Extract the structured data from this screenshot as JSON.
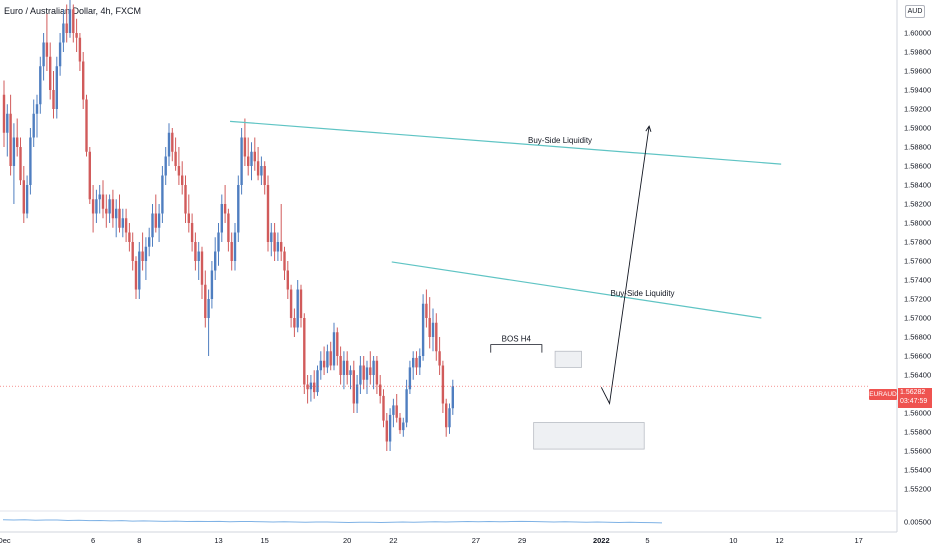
{
  "header": {
    "symbol_title": "Euro / Australian Dollar, 4h, FXCM",
    "currency": "AUD"
  },
  "last_price": {
    "symbol": "EURAUD",
    "price": "1.56282",
    "countdown": "03:47:59"
  },
  "colors": {
    "up_candle": "#4f7ec0",
    "down_candle": "#d15b5b",
    "trendline": "#5fc4c4",
    "last_price_line": "#ef5350",
    "indicator_line": "#7fb2e5",
    "zone_fill": "#eef0f3",
    "zone_border": "#b8bcc4"
  },
  "chart_data": [
    {
      "type": "candlestick",
      "title": "",
      "y_axis": {
        "position": "right",
        "range": [
          1.549,
          1.612
        ],
        "ticks": [
          "1.60000",
          "1.59800",
          "1.59600",
          "1.59400",
          "1.59200",
          "1.59000",
          "1.58800",
          "1.58600",
          "1.58400",
          "1.58200",
          "1.58000",
          "1.57800",
          "1.57600",
          "1.57400",
          "1.57200",
          "1.57000",
          "1.56800",
          "1.56600",
          "1.56400",
          "1.56200",
          "1.56000",
          "1.55800",
          "1.55600",
          "1.55400",
          "1.55200"
        ]
      },
      "x_axis": {
        "ticks": [
          "Dec",
          "6",
          "8",
          "13",
          "15",
          "20",
          "22",
          "27",
          "29",
          "2022",
          "5",
          "10",
          "12",
          "17"
        ]
      },
      "grid": false,
      "current_price": 1.56282,
      "candles": [
        {
          "o": 1.5935,
          "h": 1.595,
          "l": 1.588,
          "c": 1.5895
        },
        {
          "o": 1.5895,
          "h": 1.5925,
          "l": 1.587,
          "c": 1.5915
        },
        {
          "o": 1.5915,
          "h": 1.5935,
          "l": 1.585,
          "c": 1.586
        },
        {
          "o": 1.586,
          "h": 1.5905,
          "l": 1.582,
          "c": 1.589
        },
        {
          "o": 1.589,
          "h": 1.591,
          "l": 1.587,
          "c": 1.588
        },
        {
          "o": 1.588,
          "h": 1.589,
          "l": 1.584,
          "c": 1.5845
        },
        {
          "o": 1.5845,
          "h": 1.586,
          "l": 1.58,
          "c": 1.581
        },
        {
          "o": 1.581,
          "h": 1.585,
          "l": 1.5805,
          "c": 1.584
        },
        {
          "o": 1.584,
          "h": 1.59,
          "l": 1.583,
          "c": 1.589
        },
        {
          "o": 1.589,
          "h": 1.593,
          "l": 1.588,
          "c": 1.5915
        },
        {
          "o": 1.5915,
          "h": 1.5935,
          "l": 1.589,
          "c": 1.5925
        },
        {
          "o": 1.5925,
          "h": 1.5975,
          "l": 1.5915,
          "c": 1.5965
        },
        {
          "o": 1.5965,
          "h": 1.6,
          "l": 1.595,
          "c": 1.599
        },
        {
          "o": 1.599,
          "h": 1.602,
          "l": 1.596,
          "c": 1.5975
        },
        {
          "o": 1.5975,
          "h": 1.599,
          "l": 1.593,
          "c": 1.594
        },
        {
          "o": 1.594,
          "h": 1.596,
          "l": 1.591,
          "c": 1.592
        },
        {
          "o": 1.592,
          "h": 1.5975,
          "l": 1.591,
          "c": 1.5965
        },
        {
          "o": 1.5965,
          "h": 1.6,
          "l": 1.5955,
          "c": 1.599
        },
        {
          "o": 1.599,
          "h": 1.6025,
          "l": 1.598,
          "c": 1.601
        },
        {
          "o": 1.601,
          "h": 1.603,
          "l": 1.599,
          "c": 1.6
        },
        {
          "o": 1.6,
          "h": 1.6035,
          "l": 1.5995,
          "c": 1.6025
        },
        {
          "o": 1.6025,
          "h": 1.603,
          "l": 1.599,
          "c": 1.6
        },
        {
          "o": 1.6,
          "h": 1.6015,
          "l": 1.598,
          "c": 1.5995
        },
        {
          "o": 1.5995,
          "h": 1.6,
          "l": 1.596,
          "c": 1.597
        },
        {
          "o": 1.597,
          "h": 1.598,
          "l": 1.592,
          "c": 1.593
        },
        {
          "o": 1.593,
          "h": 1.5935,
          "l": 1.587,
          "c": 1.5875
        },
        {
          "o": 1.5875,
          "h": 1.588,
          "l": 1.582,
          "c": 1.5825
        },
        {
          "o": 1.5825,
          "h": 1.584,
          "l": 1.579,
          "c": 1.581
        },
        {
          "o": 1.581,
          "h": 1.5835,
          "l": 1.58,
          "c": 1.5825
        },
        {
          "o": 1.5825,
          "h": 1.584,
          "l": 1.581,
          "c": 1.583
        },
        {
          "o": 1.583,
          "h": 1.5845,
          "l": 1.5805,
          "c": 1.5815
        },
        {
          "o": 1.5815,
          "h": 1.583,
          "l": 1.5795,
          "c": 1.581
        },
        {
          "o": 1.581,
          "h": 1.583,
          "l": 1.58,
          "c": 1.5825
        },
        {
          "o": 1.5825,
          "h": 1.5835,
          "l": 1.5795,
          "c": 1.5805
        },
        {
          "o": 1.5805,
          "h": 1.5825,
          "l": 1.5785,
          "c": 1.5815
        },
        {
          "o": 1.5815,
          "h": 1.583,
          "l": 1.579,
          "c": 1.5795
        },
        {
          "o": 1.5795,
          "h": 1.5815,
          "l": 1.5785,
          "c": 1.5805
        },
        {
          "o": 1.5805,
          "h": 1.5815,
          "l": 1.578,
          "c": 1.579
        },
        {
          "o": 1.579,
          "h": 1.58,
          "l": 1.577,
          "c": 1.578
        },
        {
          "o": 1.578,
          "h": 1.579,
          "l": 1.575,
          "c": 1.576
        },
        {
          "o": 1.576,
          "h": 1.5765,
          "l": 1.572,
          "c": 1.573
        },
        {
          "o": 1.573,
          "h": 1.578,
          "l": 1.572,
          "c": 1.577
        },
        {
          "o": 1.577,
          "h": 1.579,
          "l": 1.575,
          "c": 1.576
        },
        {
          "o": 1.576,
          "h": 1.5785,
          "l": 1.574,
          "c": 1.5775
        },
        {
          "o": 1.5775,
          "h": 1.5795,
          "l": 1.5765,
          "c": 1.5785
        },
        {
          "o": 1.5785,
          "h": 1.582,
          "l": 1.5775,
          "c": 1.581
        },
        {
          "o": 1.581,
          "h": 1.583,
          "l": 1.579,
          "c": 1.5795
        },
        {
          "o": 1.5795,
          "h": 1.582,
          "l": 1.578,
          "c": 1.581
        },
        {
          "o": 1.581,
          "h": 1.586,
          "l": 1.58,
          "c": 1.585
        },
        {
          "o": 1.585,
          "h": 1.588,
          "l": 1.584,
          "c": 1.587
        },
        {
          "o": 1.587,
          "h": 1.5905,
          "l": 1.586,
          "c": 1.5895
        },
        {
          "o": 1.5895,
          "h": 1.59,
          "l": 1.5865,
          "c": 1.5875
        },
        {
          "o": 1.5875,
          "h": 1.589,
          "l": 1.5855,
          "c": 1.586
        },
        {
          "o": 1.586,
          "h": 1.588,
          "l": 1.584,
          "c": 1.585
        },
        {
          "o": 1.585,
          "h": 1.5865,
          "l": 1.583,
          "c": 1.584
        },
        {
          "o": 1.584,
          "h": 1.585,
          "l": 1.58,
          "c": 1.581
        },
        {
          "o": 1.581,
          "h": 1.583,
          "l": 1.579,
          "c": 1.58
        },
        {
          "o": 1.58,
          "h": 1.581,
          "l": 1.577,
          "c": 1.578
        },
        {
          "o": 1.578,
          "h": 1.579,
          "l": 1.575,
          "c": 1.576
        },
        {
          "o": 1.576,
          "h": 1.578,
          "l": 1.574,
          "c": 1.577
        },
        {
          "o": 1.577,
          "h": 1.5775,
          "l": 1.572,
          "c": 1.5735
        },
        {
          "o": 1.5735,
          "h": 1.575,
          "l": 1.569,
          "c": 1.57
        },
        {
          "o": 1.57,
          "h": 1.573,
          "l": 1.566,
          "c": 1.572
        },
        {
          "o": 1.572,
          "h": 1.576,
          "l": 1.571,
          "c": 1.575
        },
        {
          "o": 1.575,
          "h": 1.5785,
          "l": 1.574,
          "c": 1.577
        },
        {
          "o": 1.577,
          "h": 1.58,
          "l": 1.5755,
          "c": 1.579
        },
        {
          "o": 1.579,
          "h": 1.583,
          "l": 1.578,
          "c": 1.582
        },
        {
          "o": 1.582,
          "h": 1.584,
          "l": 1.58,
          "c": 1.581
        },
        {
          "o": 1.581,
          "h": 1.5815,
          "l": 1.577,
          "c": 1.578
        },
        {
          "o": 1.578,
          "h": 1.579,
          "l": 1.575,
          "c": 1.576
        },
        {
          "o": 1.576,
          "h": 1.58,
          "l": 1.575,
          "c": 1.579
        },
        {
          "o": 1.579,
          "h": 1.585,
          "l": 1.578,
          "c": 1.584
        },
        {
          "o": 1.584,
          "h": 1.59,
          "l": 1.583,
          "c": 1.589
        },
        {
          "o": 1.589,
          "h": 1.591,
          "l": 1.586,
          "c": 1.587
        },
        {
          "o": 1.587,
          "h": 1.589,
          "l": 1.585,
          "c": 1.586
        },
        {
          "o": 1.586,
          "h": 1.5885,
          "l": 1.5845,
          "c": 1.5875
        },
        {
          "o": 1.5875,
          "h": 1.589,
          "l": 1.5855,
          "c": 1.5865
        },
        {
          "o": 1.5865,
          "h": 1.588,
          "l": 1.5845,
          "c": 1.585
        },
        {
          "o": 1.585,
          "h": 1.587,
          "l": 1.584,
          "c": 1.586
        },
        {
          "o": 1.586,
          "h": 1.5865,
          "l": 1.583,
          "c": 1.584
        },
        {
          "o": 1.584,
          "h": 1.585,
          "l": 1.577,
          "c": 1.578
        },
        {
          "o": 1.578,
          "h": 1.58,
          "l": 1.5765,
          "c": 1.579
        },
        {
          "o": 1.579,
          "h": 1.58,
          "l": 1.576,
          "c": 1.577
        },
        {
          "o": 1.577,
          "h": 1.579,
          "l": 1.576,
          "c": 1.578
        },
        {
          "o": 1.578,
          "h": 1.582,
          "l": 1.576,
          "c": 1.577
        },
        {
          "o": 1.577,
          "h": 1.5775,
          "l": 1.574,
          "c": 1.575
        },
        {
          "o": 1.575,
          "h": 1.576,
          "l": 1.572,
          "c": 1.573
        },
        {
          "o": 1.573,
          "h": 1.5735,
          "l": 1.569,
          "c": 1.57
        },
        {
          "o": 1.57,
          "h": 1.571,
          "l": 1.568,
          "c": 1.569
        },
        {
          "o": 1.569,
          "h": 1.574,
          "l": 1.5685,
          "c": 1.573
        },
        {
          "o": 1.573,
          "h": 1.5735,
          "l": 1.569,
          "c": 1.57
        },
        {
          "o": 1.57,
          "h": 1.5705,
          "l": 1.562,
          "c": 1.563
        },
        {
          "o": 1.563,
          "h": 1.564,
          "l": 1.561,
          "c": 1.5625
        },
        {
          "o": 1.5625,
          "h": 1.564,
          "l": 1.5612,
          "c": 1.5632
        },
        {
          "o": 1.5632,
          "h": 1.5645,
          "l": 1.5615,
          "c": 1.5622
        },
        {
          "o": 1.5622,
          "h": 1.565,
          "l": 1.5618,
          "c": 1.5645
        },
        {
          "o": 1.5645,
          "h": 1.5665,
          "l": 1.5635,
          "c": 1.5655
        },
        {
          "o": 1.5655,
          "h": 1.567,
          "l": 1.564,
          "c": 1.5648
        },
        {
          "o": 1.5648,
          "h": 1.5672,
          "l": 1.5642,
          "c": 1.5665
        },
        {
          "o": 1.5665,
          "h": 1.5675,
          "l": 1.5645,
          "c": 1.565
        },
        {
          "o": 1.565,
          "h": 1.5695,
          "l": 1.5645,
          "c": 1.5685
        },
        {
          "o": 1.5685,
          "h": 1.569,
          "l": 1.565,
          "c": 1.566
        },
        {
          "o": 1.566,
          "h": 1.567,
          "l": 1.563,
          "c": 1.564
        },
        {
          "o": 1.564,
          "h": 1.5665,
          "l": 1.5625,
          "c": 1.5655
        },
        {
          "o": 1.5655,
          "h": 1.5665,
          "l": 1.563,
          "c": 1.564
        },
        {
          "o": 1.564,
          "h": 1.565,
          "l": 1.5625,
          "c": 1.5645
        },
        {
          "o": 1.5645,
          "h": 1.5655,
          "l": 1.56,
          "c": 1.561
        },
        {
          "o": 1.561,
          "h": 1.564,
          "l": 1.56,
          "c": 1.563
        },
        {
          "o": 1.563,
          "h": 1.566,
          "l": 1.562,
          "c": 1.565
        },
        {
          "o": 1.565,
          "h": 1.566,
          "l": 1.5625,
          "c": 1.5635
        },
        {
          "o": 1.5635,
          "h": 1.5655,
          "l": 1.562,
          "c": 1.5648
        },
        {
          "o": 1.5648,
          "h": 1.5665,
          "l": 1.563,
          "c": 1.564
        },
        {
          "o": 1.564,
          "h": 1.566,
          "l": 1.5625,
          "c": 1.5655
        },
        {
          "o": 1.5655,
          "h": 1.566,
          "l": 1.562,
          "c": 1.563
        },
        {
          "o": 1.563,
          "h": 1.564,
          "l": 1.561,
          "c": 1.5618
        },
        {
          "o": 1.5618,
          "h": 1.5625,
          "l": 1.5585,
          "c": 1.5592
        },
        {
          "o": 1.5592,
          "h": 1.56,
          "l": 1.556,
          "c": 1.557
        },
        {
          "o": 1.557,
          "h": 1.5605,
          "l": 1.556,
          "c": 1.5598
        },
        {
          "o": 1.5598,
          "h": 1.5615,
          "l": 1.5585,
          "c": 1.5608
        },
        {
          "o": 1.5608,
          "h": 1.562,
          "l": 1.559,
          "c": 1.5595
        },
        {
          "o": 1.5595,
          "h": 1.56,
          "l": 1.5578,
          "c": 1.5582
        },
        {
          "o": 1.5582,
          "h": 1.5595,
          "l": 1.5575,
          "c": 1.559
        },
        {
          "o": 1.559,
          "h": 1.5635,
          "l": 1.5585,
          "c": 1.5625
        },
        {
          "o": 1.5625,
          "h": 1.5655,
          "l": 1.562,
          "c": 1.5648
        },
        {
          "o": 1.5648,
          "h": 1.5665,
          "l": 1.5635,
          "c": 1.5658
        },
        {
          "o": 1.5658,
          "h": 1.5665,
          "l": 1.564,
          "c": 1.5648
        },
        {
          "o": 1.5648,
          "h": 1.5668,
          "l": 1.564,
          "c": 1.566
        },
        {
          "o": 1.566,
          "h": 1.5725,
          "l": 1.5655,
          "c": 1.5715
        },
        {
          "o": 1.5715,
          "h": 1.573,
          "l": 1.569,
          "c": 1.57
        },
        {
          "o": 1.57,
          "h": 1.5722,
          "l": 1.5668,
          "c": 1.568
        },
        {
          "o": 1.568,
          "h": 1.571,
          "l": 1.5665,
          "c": 1.5695
        },
        {
          "o": 1.5695,
          "h": 1.5705,
          "l": 1.5655,
          "c": 1.5665
        },
        {
          "o": 1.5665,
          "h": 1.568,
          "l": 1.564,
          "c": 1.565
        },
        {
          "o": 1.565,
          "h": 1.5655,
          "l": 1.56,
          "c": 1.561
        },
        {
          "o": 1.561,
          "h": 1.5615,
          "l": 1.5575,
          "c": 1.5585
        },
        {
          "o": 1.5585,
          "h": 1.561,
          "l": 1.5578,
          "c": 1.5605
        },
        {
          "o": 1.5605,
          "h": 1.5635,
          "l": 1.5598,
          "c": 1.5628
        }
      ],
      "indicator": {
        "ticks": [
          "0.00500"
        ],
        "values": [
          0.006,
          0.0059,
          0.006,
          0.0058,
          0.0059,
          0.0059,
          0.0057,
          0.0058,
          0.0056,
          0.0057,
          0.0055,
          0.0056,
          0.0054,
          0.0055,
          0.0054,
          0.0053,
          0.0054,
          0.0052,
          0.0053,
          0.0052,
          0.0053,
          0.0051,
          0.0052,
          0.0052,
          0.0051,
          0.005,
          0.0051,
          0.005,
          0.0049,
          0.005,
          0.005,
          0.0049,
          0.0048,
          0.0049,
          0.0049,
          0.0048,
          0.0049,
          0.005,
          0.0049,
          0.005,
          0.0051,
          0.005,
          0.0051,
          0.0052,
          0.0051,
          0.0052,
          0.0051,
          0.0052,
          0.0053,
          0.0052,
          0.0051,
          0.005,
          0.0051,
          0.005,
          0.0049,
          0.005,
          0.0049,
          0.0048,
          0.0049,
          0.0048,
          0.0047,
          0.0046
        ]
      },
      "annotations": {
        "labels": [
          "Buy-Side Liquidity",
          "Buy-Side Liquidity",
          "BOS H4"
        ],
        "liquidity_upper": {
          "label": "Buy-Side Liquidity",
          "from": {
            "index": 68.5,
            "price": 1.5907
          },
          "to": {
            "index": 235.5,
            "price": 1.5862
          }
        },
        "liquidity_lower": {
          "label": "Buy-Side Liquidity",
          "from": {
            "index": 117.5,
            "price": 1.5759
          },
          "to": {
            "index": 229.5,
            "price": 1.57
          }
        },
        "bos": {
          "label": "BOS H4",
          "price": 1.5672,
          "from_index": 147.5,
          "to_index": 163
        },
        "demand_zone": {
          "from_index": 160.5,
          "to_index": 194,
          "top": 1.559,
          "bottom": 1.5562
        },
        "small_zone": {
          "from_index": 167,
          "to_index": 175,
          "top": 1.5665,
          "bottom": 1.5648
        },
        "projection": {
          "points": [
            {
              "index": 181,
              "price": 1.5627
            },
            {
              "index": 183.5,
              "price": 1.561
            },
            {
              "index": 195.5,
              "price": 1.5902
            }
          ]
        }
      }
    }
  ]
}
